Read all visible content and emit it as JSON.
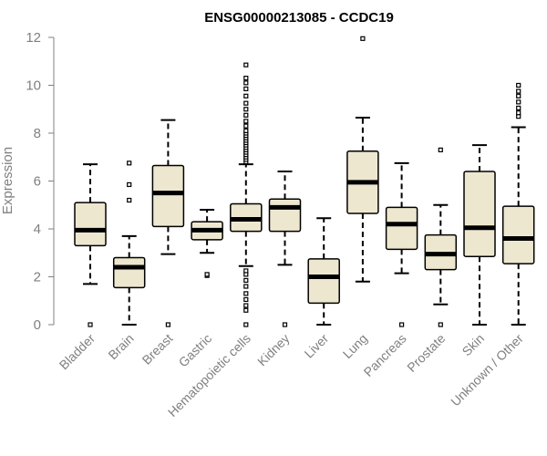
{
  "chart_data": {
    "type": "boxplot",
    "title": "ENSG00000213085 - CCDC19",
    "xlabel": "",
    "ylabel": "Expression",
    "ylim": [
      0,
      12
    ],
    "yticks": [
      0,
      2,
      4,
      6,
      8,
      10,
      12
    ],
    "box_color": "#ede7cf",
    "categories": [
      "Bladder",
      "Brain",
      "Breast",
      "Gastric",
      "Hematopoietic cells",
      "Kidney",
      "Liver",
      "Lung",
      "Pancreas",
      "Prostate",
      "Skin",
      "Unknown / Other"
    ],
    "boxes": [
      {
        "name": "Bladder",
        "whisker_low": 1.7,
        "q1": 3.3,
        "median": 3.95,
        "q3": 5.1,
        "whisker_high": 6.7,
        "outliers": [
          0
        ]
      },
      {
        "name": "Brain",
        "whisker_low": 0,
        "q1": 1.55,
        "median": 2.4,
        "q3": 2.8,
        "whisker_high": 3.7,
        "outliers": [
          5.2,
          5.85,
          6.75
        ]
      },
      {
        "name": "Breast",
        "whisker_low": 2.95,
        "q1": 4.1,
        "median": 5.5,
        "q3": 6.65,
        "whisker_high": 8.55,
        "outliers": [
          0
        ]
      },
      {
        "name": "Gastric",
        "whisker_low": 3.0,
        "q1": 3.55,
        "median": 3.95,
        "q3": 4.3,
        "whisker_high": 4.8,
        "outliers": [
          2.05,
          2.1
        ]
      },
      {
        "name": "Hematopoietic cells",
        "whisker_low": 2.45,
        "q1": 3.9,
        "median": 4.4,
        "q3": 5.05,
        "whisker_high": 6.7,
        "outliers": [
          0,
          0.6,
          0.8,
          1.05,
          1.3,
          1.6,
          1.85,
          2.1,
          2.25,
          6.8,
          6.9,
          7.0,
          7.1,
          7.2,
          7.3,
          7.4,
          7.5,
          7.6,
          7.7,
          7.8,
          7.9,
          8.0,
          8.1,
          8.3,
          8.5,
          8.75,
          9.0,
          9.25,
          9.55,
          9.85,
          10.1,
          10.3,
          10.85
        ]
      },
      {
        "name": "Kidney",
        "whisker_low": 2.5,
        "q1": 3.9,
        "median": 4.9,
        "q3": 5.25,
        "whisker_high": 6.4,
        "outliers": [
          0
        ]
      },
      {
        "name": "Liver",
        "whisker_low": 0,
        "q1": 0.9,
        "median": 2.0,
        "q3": 2.75,
        "whisker_high": 4.45,
        "outliers": []
      },
      {
        "name": "Lung",
        "whisker_low": 1.8,
        "q1": 4.65,
        "median": 5.95,
        "q3": 7.25,
        "whisker_high": 8.65,
        "outliers": [
          11.95
        ]
      },
      {
        "name": "Pancreas",
        "whisker_low": 2.15,
        "q1": 3.15,
        "median": 4.2,
        "q3": 4.9,
        "whisker_high": 6.75,
        "outliers": [
          0
        ]
      },
      {
        "name": "Prostate",
        "whisker_low": 0.85,
        "q1": 2.3,
        "median": 2.95,
        "q3": 3.75,
        "whisker_high": 5.0,
        "outliers": [
          0,
          7.3
        ]
      },
      {
        "name": "Skin",
        "whisker_low": 0,
        "q1": 2.85,
        "median": 4.05,
        "q3": 6.4,
        "whisker_high": 7.5,
        "outliers": []
      },
      {
        "name": "Unknown / Other",
        "whisker_low": 0,
        "q1": 2.55,
        "median": 3.6,
        "q3": 4.95,
        "whisker_high": 8.25,
        "outliers": [
          8.7,
          8.85,
          9.05,
          9.3,
          9.55,
          9.75,
          10.0
        ]
      }
    ]
  }
}
